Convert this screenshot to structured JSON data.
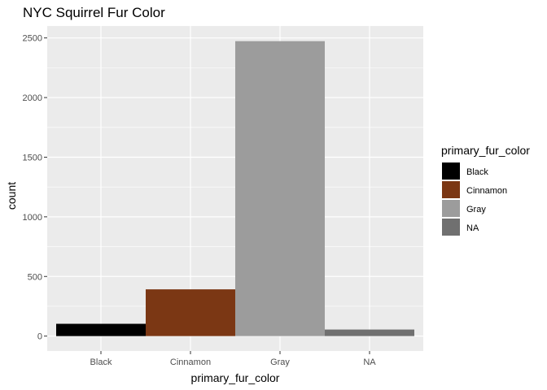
{
  "chart_data": {
    "type": "bar",
    "title": "NYC Squirrel Fur Color",
    "xlabel": "primary_fur_color",
    "ylabel": "count",
    "categories": [
      "Black",
      "Cinnamon",
      "Gray",
      "NA"
    ],
    "values": [
      103,
      392,
      2473,
      55
    ],
    "colors": [
      "#000000",
      "#7B3714",
      "#9C9C9C",
      "#707070"
    ],
    "ylim": [
      -125,
      2600
    ],
    "yticks": [
      0,
      500,
      1000,
      1500,
      2000,
      2500
    ],
    "grid": true,
    "panel_background": "#EBEBEB",
    "legend": {
      "title": "primary_fur_color",
      "position": "right",
      "items": [
        {
          "label": "Black",
          "color": "#000000"
        },
        {
          "label": "Cinnamon",
          "color": "#7B3714"
        },
        {
          "label": "Gray",
          "color": "#9C9C9C"
        },
        {
          "label": "NA",
          "color": "#707070"
        }
      ]
    }
  }
}
